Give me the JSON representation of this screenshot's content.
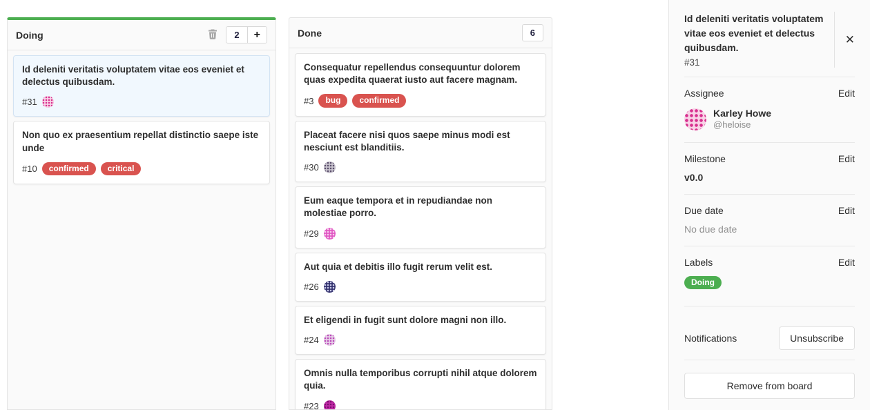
{
  "board": {
    "columns": [
      {
        "title": "Doing",
        "count": "2",
        "accent_color": "#4cae50",
        "add_label": "+",
        "cards": [
          {
            "title": "Id deleniti veritatis voluptatem vitae eos eveniet et delectus quibusdam.",
            "number": "#31",
            "selected": true,
            "avatar": {
              "bg": "#f8d3e7",
              "dot": "#d8308f"
            }
          },
          {
            "title": "Non quo ex praesentium repellat distinctio saepe iste unde",
            "number": "#10",
            "labels": [
              {
                "text": "confirmed",
                "color": "#d9534f"
              },
              {
                "text": "critical",
                "color": "#d9534f"
              }
            ]
          }
        ]
      },
      {
        "title": "Done",
        "count": "6",
        "cards": [
          {
            "title": "Consequatur repellendus consequuntur dolorem quas expedita quaerat iusto aut facere magnam.",
            "number": "#3",
            "labels": [
              {
                "text": "bug",
                "color": "#d9534f"
              },
              {
                "text": "confirmed",
                "color": "#d9534f"
              }
            ]
          },
          {
            "title": "Placeat facere nisi quos saepe minus modi est nesciunt est blanditiis.",
            "number": "#30",
            "avatar": {
              "bg": "#c9c4cf",
              "dot": "#5a4f6b"
            }
          },
          {
            "title": "Eum eaque tempora et in repudiandae non molestiae porro.",
            "number": "#29",
            "avatar": {
              "bg": "#e158c3",
              "dot": "#f7cdee"
            }
          },
          {
            "title": "Aut quia et debitis illo fugit rerum velit est.",
            "number": "#26",
            "avatar": {
              "bg": "#33316d",
              "dot": "#c9cae9"
            }
          },
          {
            "title": "Et eligendi in fugit sunt dolore magni non illo.",
            "number": "#24",
            "avatar": {
              "bg": "#e7d0e8",
              "dot": "#bb4cba"
            }
          },
          {
            "title": "Omnis nulla temporibus corrupti nihil atque dolorem quia.",
            "number": "#23",
            "avatar": {
              "bg": "#c02ba6",
              "dot": "#7e0e70"
            }
          }
        ]
      }
    ]
  },
  "sidebar": {
    "title": "Id deleniti veritatis voluptatem vitae eos eveniet et delectus quibusdam.",
    "issue_number": "#31",
    "close_icon": "✕",
    "assignee": {
      "label": "Assignee",
      "edit": "Edit",
      "name": "Karley Howe",
      "username": "@heloise",
      "avatar": {
        "bg": "#f8d3e7",
        "dot": "#d8308f"
      }
    },
    "milestone": {
      "label": "Milestone",
      "edit": "Edit",
      "value": "v0.0"
    },
    "due_date": {
      "label": "Due date",
      "edit": "Edit",
      "value": "No due date"
    },
    "labels": {
      "label": "Labels",
      "edit": "Edit",
      "items": [
        {
          "text": "Doing",
          "color": "#4cae50"
        }
      ]
    },
    "notifications": {
      "label": "Notifications",
      "button": "Unsubscribe"
    },
    "remove_button": "Remove from board"
  }
}
